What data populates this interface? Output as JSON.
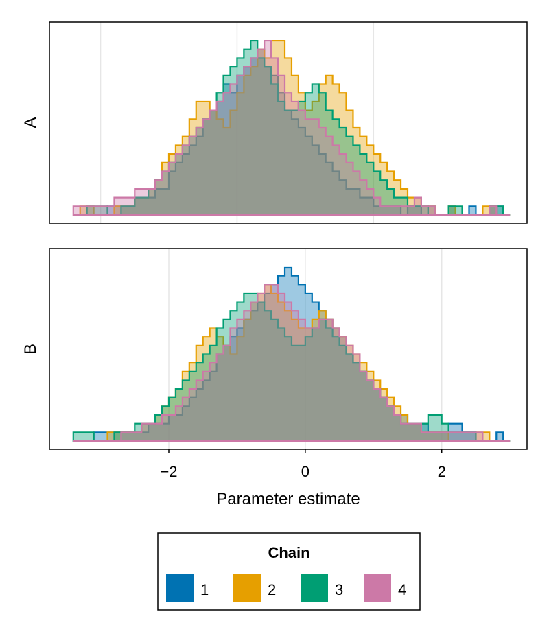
{
  "chart_data": {
    "type": "histogram",
    "xlabel": "Parameter estimate",
    "xticks": [
      -2,
      0,
      2
    ],
    "xlim": [
      -3.75,
      3.25
    ],
    "grid": "vertical",
    "legend": {
      "title": "Chain",
      "placement": "bottom-center",
      "entries": [
        {
          "label": "1",
          "color": "#0072B2"
        },
        {
          "label": "2",
          "color": "#E69F00"
        },
        {
          "label": "3",
          "color": "#009E73"
        },
        {
          "label": "4",
          "color": "#CC79A7"
        }
      ]
    },
    "panels": [
      {
        "ylabel": "A",
        "ymax": 21.5,
        "series": [
          {
            "name": "1",
            "color": "#0072B2",
            "start": -3.4,
            "width": 0.1,
            "counts": [
              0,
              0,
              0,
              0,
              0,
              1,
              1,
              1,
              1,
              2,
              2,
              2,
              3,
              3,
              5,
              6,
              7,
              8,
              9,
              11,
              12,
              13,
              15,
              14,
              16,
              17,
              18,
              19,
              17,
              16,
              14,
              12,
              11,
              10,
              9,
              8,
              7,
              6,
              5,
              4,
              3,
              3,
              2,
              2,
              1,
              1,
              1,
              1,
              0,
              1,
              1,
              0,
              1,
              0,
              0,
              1,
              0,
              0,
              1,
              0,
              0,
              1,
              1,
              0
            ]
          },
          {
            "name": "2",
            "color": "#E69F00",
            "start": -3.4,
            "width": 0.1,
            "counts": [
              0,
              1,
              1,
              0,
              0,
              0,
              1,
              1,
              1,
              2,
              2,
              3,
              4,
              6,
              7,
              8,
              9,
              11,
              13,
              13,
              12,
              11,
              10,
              12,
              14,
              16,
              17,
              19,
              18,
              20,
              20,
              18,
              16,
              14,
              12,
              13,
              15,
              16,
              15,
              14,
              12,
              10,
              9,
              8,
              7,
              6,
              5,
              4,
              3,
              2,
              2,
              1,
              1,
              0,
              0,
              1,
              0,
              0,
              0,
              0,
              1,
              1,
              0,
              0
            ]
          },
          {
            "name": "3",
            "color": "#009E73",
            "start": -3.4,
            "width": 0.1,
            "counts": [
              0,
              0,
              1,
              1,
              1,
              0,
              0,
              1,
              1,
              2,
              2,
              3,
              4,
              5,
              6,
              7,
              8,
              9,
              10,
              11,
              12,
              14,
              16,
              17,
              18,
              19,
              20,
              18,
              17,
              15,
              13,
              12,
              12,
              13,
              14,
              15,
              14,
              12,
              11,
              10,
              9,
              8,
              7,
              6,
              5,
              4,
              3,
              2,
              2,
              1,
              1,
              1,
              0,
              0,
              0,
              1,
              1,
              0,
              0,
              0,
              0,
              1,
              1,
              0
            ]
          },
          {
            "name": "4",
            "color": "#CC79A7",
            "start": -3.4,
            "width": 0.1,
            "counts": [
              1,
              1,
              1,
              1,
              1,
              1,
              2,
              2,
              2,
              3,
              3,
              3,
              4,
              5,
              6,
              7,
              8,
              9,
              10,
              11,
              12,
              13,
              14,
              15,
              16,
              17,
              18,
              19,
              20,
              18,
              16,
              14,
              13,
              12,
              11,
              11,
              10,
              9,
              8,
              7,
              6,
              5,
              4,
              3,
              2,
              1,
              1,
              1,
              1,
              1,
              2,
              1,
              1,
              0,
              0,
              0,
              0,
              0,
              0,
              0,
              0,
              1,
              0,
              0
            ]
          }
        ]
      },
      {
        "ylabel": "B",
        "ymax": 21.5,
        "series": [
          {
            "name": "1",
            "color": "#0072B2",
            "start": -3.4,
            "width": 0.1,
            "counts": [
              0,
              0,
              0,
              1,
              1,
              1,
              1,
              1,
              1,
              1,
              1,
              2,
              2,
              2,
              3,
              3,
              4,
              5,
              6,
              7,
              8,
              10,
              11,
              12,
              13,
              14,
              15,
              16,
              17,
              18,
              19,
              20,
              19,
              18,
              17,
              16,
              15,
              14,
              13,
              12,
              10,
              9,
              8,
              7,
              6,
              5,
              4,
              3,
              3,
              2,
              2,
              2,
              1,
              1,
              1,
              2,
              2,
              1,
              1,
              0,
              0,
              0,
              1,
              0
            ]
          },
          {
            "name": "2",
            "color": "#E69F00",
            "start": -3.4,
            "width": 0.1,
            "counts": [
              0,
              0,
              0,
              0,
              0,
              1,
              1,
              1,
              1,
              1,
              2,
              2,
              3,
              4,
              5,
              6,
              8,
              9,
              11,
              12,
              13,
              12,
              11,
              10,
              12,
              14,
              16,
              17,
              18,
              17,
              16,
              15,
              14,
              13,
              13,
              14,
              15,
              14,
              13,
              12,
              11,
              10,
              9,
              8,
              7,
              6,
              5,
              4,
              3,
              2,
              2,
              1,
              1,
              1,
              1,
              0,
              0,
              0,
              0,
              1,
              1,
              0,
              0,
              0
            ]
          },
          {
            "name": "3",
            "color": "#009E73",
            "start": -3.4,
            "width": 0.1,
            "counts": [
              1,
              1,
              1,
              0,
              0,
              0,
              1,
              1,
              1,
              2,
              2,
              2,
              3,
              4,
              5,
              6,
              7,
              8,
              9,
              10,
              11,
              13,
              14,
              15,
              16,
              17,
              17,
              16,
              15,
              14,
              13,
              12,
              11,
              11,
              12,
              13,
              14,
              13,
              12,
              11,
              10,
              9,
              8,
              7,
              6,
              5,
              4,
              3,
              2,
              2,
              2,
              2,
              3,
              3,
              2,
              1,
              1,
              1,
              1,
              0,
              0,
              0,
              0,
              0
            ]
          },
          {
            "name": "4",
            "color": "#CC79A7",
            "start": -3.4,
            "width": 0.1,
            "counts": [
              0,
              0,
              0,
              0,
              0,
              0,
              0,
              1,
              1,
              1,
              2,
              2,
              2,
              3,
              3,
              4,
              5,
              6,
              7,
              8,
              9,
              10,
              11,
              13,
              14,
              15,
              16,
              17,
              18,
              18,
              17,
              16,
              15,
              14,
              13,
              13,
              14,
              14,
              13,
              12,
              11,
              10,
              8,
              7,
              6,
              5,
              4,
              3,
              2,
              2,
              2,
              1,
              1,
              1,
              1,
              1,
              1,
              1,
              1,
              1,
              0,
              0,
              0,
              0
            ]
          }
        ]
      }
    ]
  }
}
